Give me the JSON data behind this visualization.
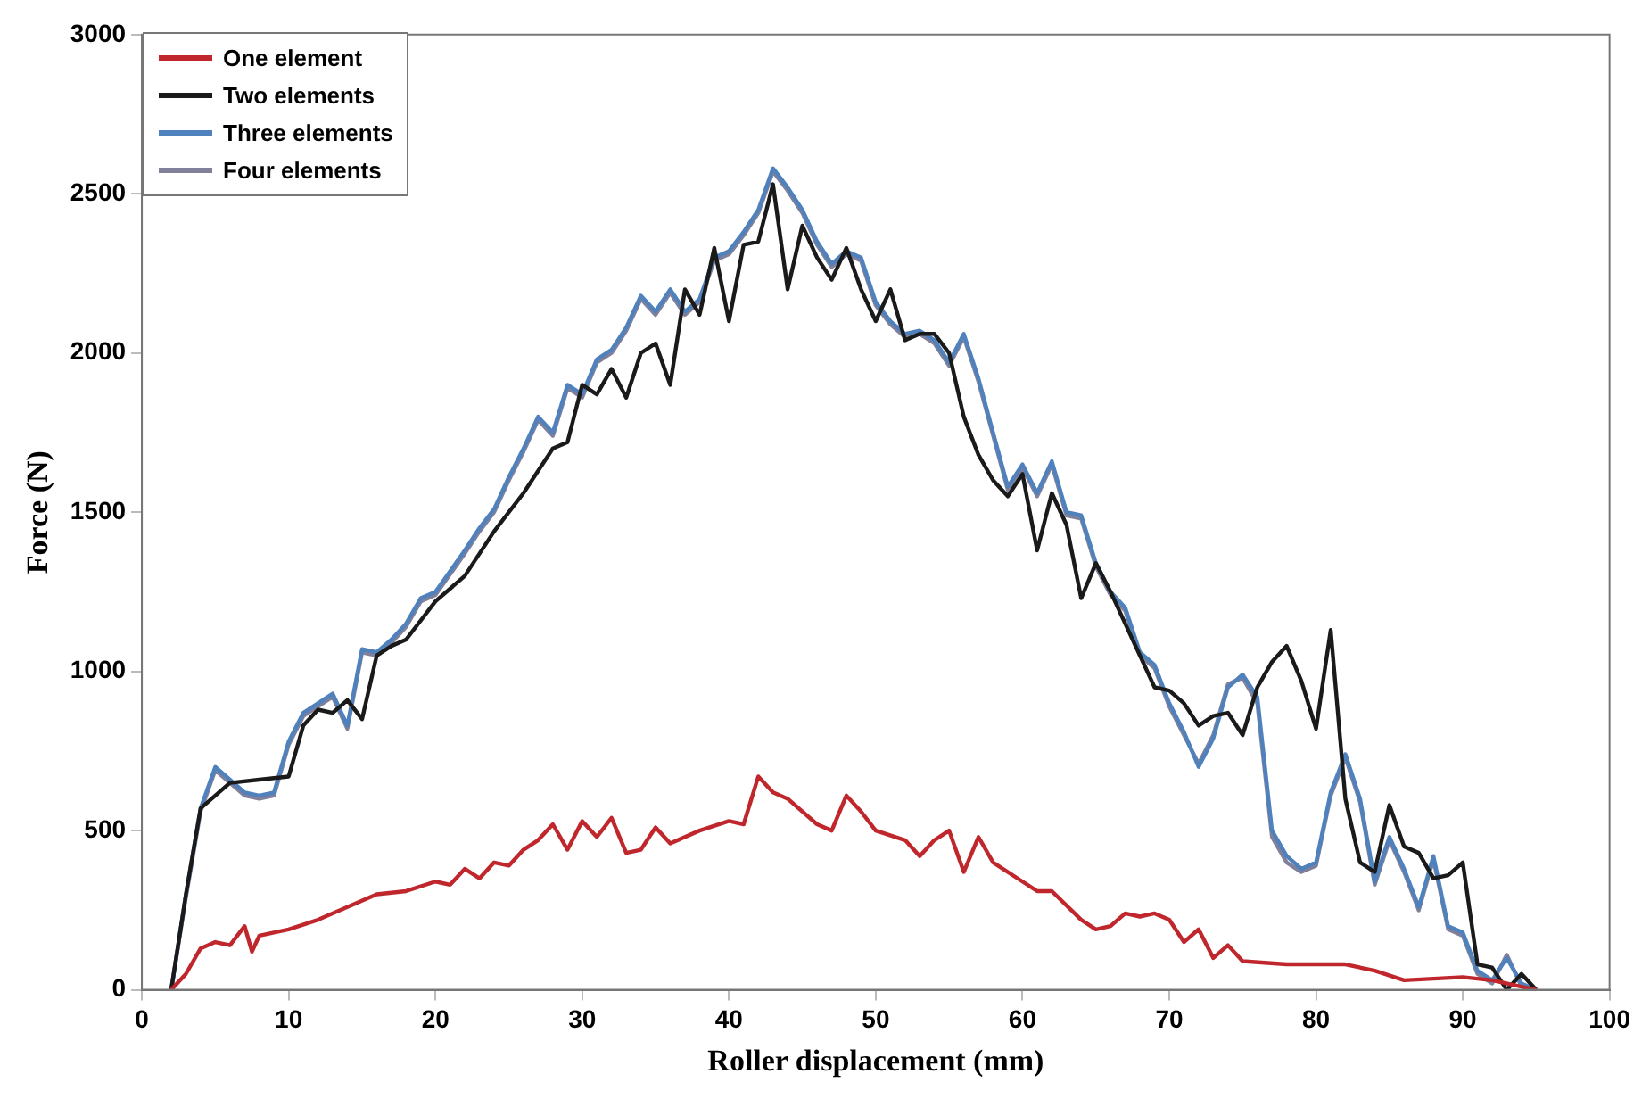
{
  "chart_data": {
    "type": "line",
    "xlabel": "Roller displacement (mm)",
    "ylabel": "Force (N)",
    "xlim": [
      0,
      100
    ],
    "xticks": [
      0,
      10,
      20,
      30,
      40,
      50,
      60,
      70,
      80,
      90,
      100
    ],
    "ylim": [
      0,
      3000
    ],
    "yticks": [
      0,
      500,
      1000,
      1500,
      2000,
      2500,
      3000
    ],
    "grid": false,
    "legend": "top left",
    "marker": "none",
    "line_style": "solid",
    "series": [
      {
        "name": "One element",
        "color": "#c0272d",
        "x": [
          2,
          3,
          4,
          5,
          6,
          7,
          7.5,
          8,
          9,
          10,
          12,
          14,
          16,
          18,
          20,
          21,
          22,
          23,
          24,
          25,
          26,
          27,
          28,
          29,
          30,
          31,
          32,
          33,
          34,
          35,
          36,
          38,
          40,
          41,
          42,
          43,
          44,
          46,
          47,
          48,
          49,
          50,
          52,
          53,
          54,
          55,
          56,
          57,
          58,
          60,
          61,
          62,
          64,
          65,
          66,
          67,
          68,
          69,
          70,
          71,
          72,
          73,
          74,
          75,
          78,
          80,
          82,
          84,
          86,
          90,
          92,
          94,
          95
        ],
        "values": [
          0,
          50,
          130,
          150,
          140,
          200,
          120,
          170,
          180,
          190,
          220,
          260,
          300,
          310,
          340,
          330,
          380,
          350,
          400,
          390,
          440,
          470,
          520,
          440,
          530,
          480,
          540,
          430,
          440,
          510,
          460,
          500,
          530,
          520,
          670,
          620,
          600,
          520,
          500,
          610,
          560,
          500,
          470,
          420,
          470,
          500,
          370,
          480,
          400,
          340,
          310,
          310,
          220,
          190,
          200,
          240,
          230,
          240,
          220,
          150,
          190,
          100,
          140,
          90,
          80,
          80,
          80,
          60,
          30,
          40,
          30,
          10,
          0
        ]
      },
      {
        "name": "Two elements",
        "color": "#1a1a1a",
        "x": [
          2,
          3,
          4,
          5,
          6,
          8,
          10,
          11,
          12,
          13,
          14,
          15,
          16,
          17,
          18,
          20,
          22,
          24,
          26,
          28,
          29,
          30,
          31,
          32,
          33,
          34,
          35,
          36,
          37,
          38,
          39,
          40,
          41,
          42,
          43,
          44,
          45,
          46,
          47,
          48,
          49,
          50,
          51,
          52,
          53,
          54,
          55,
          56,
          57,
          58,
          59,
          60,
          61,
          62,
          63,
          64,
          65,
          66,
          67,
          69,
          70,
          71,
          72,
          73,
          74,
          75,
          76,
          77,
          78,
          79,
          80,
          81,
          82,
          83,
          84,
          85,
          86,
          87,
          88,
          89,
          90,
          91,
          92,
          93,
          94,
          95
        ],
        "values": [
          0,
          300,
          570,
          610,
          650,
          660,
          670,
          830,
          880,
          870,
          910,
          850,
          1050,
          1080,
          1100,
          1220,
          1300,
          1440,
          1560,
          1700,
          1720,
          1900,
          1870,
          1950,
          1860,
          2000,
          2030,
          1900,
          2200,
          2120,
          2330,
          2100,
          2340,
          2350,
          2530,
          2200,
          2400,
          2300,
          2230,
          2330,
          2200,
          2100,
          2200,
          2040,
          2060,
          2060,
          2000,
          1800,
          1680,
          1600,
          1550,
          1620,
          1380,
          1560,
          1460,
          1230,
          1340,
          1250,
          1150,
          950,
          940,
          900,
          830,
          860,
          870,
          800,
          950,
          1030,
          1080,
          970,
          820,
          1130,
          600,
          400,
          370,
          580,
          450,
          430,
          350,
          360,
          400,
          80,
          70,
          0,
          50,
          0
        ]
      },
      {
        "name": "Three elements",
        "color": "#4f81bd",
        "x": [
          2,
          3,
          4,
          5,
          6,
          7,
          8,
          9,
          10,
          11,
          12,
          13,
          14,
          15,
          16,
          17,
          18,
          19,
          20,
          22,
          23,
          24,
          25,
          26,
          27,
          28,
          29,
          30,
          31,
          32,
          33,
          34,
          35,
          36,
          37,
          38,
          39,
          40,
          41,
          42,
          43,
          44,
          45,
          46,
          47,
          48,
          49,
          50,
          51,
          52,
          53,
          54,
          55,
          56,
          57,
          58,
          59,
          60,
          61,
          62,
          63,
          64,
          65,
          66,
          67,
          68,
          69,
          70,
          71,
          72,
          73,
          74,
          75,
          76,
          77,
          78,
          79,
          80,
          81,
          82,
          83,
          84,
          85,
          86,
          87,
          88,
          89,
          90,
          91,
          92,
          93,
          94,
          95
        ],
        "values": [
          0,
          300,
          570,
          700,
          660,
          620,
          610,
          620,
          780,
          870,
          900,
          930,
          830,
          1070,
          1060,
          1100,
          1150,
          1230,
          1250,
          1380,
          1450,
          1510,
          1610,
          1700,
          1800,
          1750,
          1900,
          1870,
          1980,
          2010,
          2080,
          2180,
          2130,
          2200,
          2130,
          2170,
          2300,
          2320,
          2380,
          2450,
          2580,
          2520,
          2450,
          2350,
          2280,
          2320,
          2300,
          2160,
          2100,
          2060,
          2070,
          2040,
          1970,
          2060,
          1920,
          1750,
          1580,
          1650,
          1560,
          1660,
          1500,
          1490,
          1340,
          1250,
          1200,
          1060,
          1020,
          900,
          810,
          700,
          790,
          950,
          990,
          920,
          500,
          420,
          380,
          400,
          620,
          740,
          600,
          340,
          480,
          380,
          260,
          420,
          200,
          180,
          60,
          30,
          100,
          20,
          0
        ]
      },
      {
        "name": "Four elements",
        "color": "#80809a",
        "x": [
          2,
          3,
          4,
          5,
          6,
          7,
          8,
          9,
          10,
          11,
          12,
          13,
          14,
          15,
          16,
          17,
          18,
          19,
          20,
          22,
          23,
          24,
          25,
          26,
          27,
          28,
          29,
          30,
          31,
          32,
          33,
          34,
          35,
          36,
          37,
          38,
          39,
          40,
          41,
          42,
          43,
          44,
          45,
          46,
          47,
          48,
          49,
          50,
          51,
          52,
          53,
          54,
          55,
          56,
          57,
          58,
          59,
          60,
          61,
          62,
          63,
          64,
          65,
          66,
          67,
          68,
          69,
          70,
          71,
          72,
          73,
          74,
          75,
          76,
          77,
          78,
          79,
          80,
          81,
          82,
          83,
          84,
          85,
          86,
          87,
          88,
          89,
          90,
          91,
          92,
          93,
          94,
          95
        ],
        "values": [
          0,
          290,
          560,
          690,
          650,
          610,
          600,
          610,
          770,
          860,
          890,
          920,
          820,
          1060,
          1050,
          1090,
          1140,
          1220,
          1240,
          1370,
          1440,
          1500,
          1600,
          1690,
          1790,
          1740,
          1890,
          1860,
          1970,
          2000,
          2070,
          2170,
          2120,
          2190,
          2120,
          2160,
          2290,
          2310,
          2370,
          2440,
          2570,
          2510,
          2440,
          2340,
          2270,
          2310,
          2290,
          2150,
          2090,
          2050,
          2060,
          2030,
          1960,
          2050,
          1910,
          1740,
          1570,
          1640,
          1550,
          1650,
          1490,
          1480,
          1330,
          1240,
          1190,
          1050,
          1010,
          890,
          800,
          710,
          800,
          960,
          980,
          900,
          480,
          400,
          370,
          390,
          610,
          730,
          590,
          330,
          470,
          370,
          250,
          410,
          190,
          170,
          50,
          20,
          110,
          10,
          0
        ]
      }
    ]
  }
}
